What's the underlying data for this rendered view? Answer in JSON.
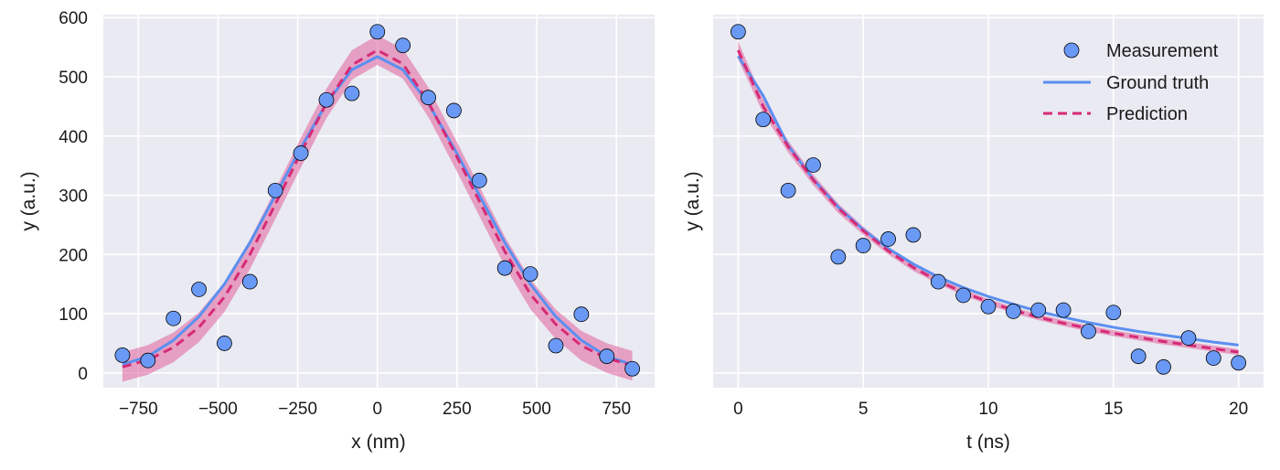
{
  "colors": {
    "background": "#eaeaf2",
    "grid": "#ffffff",
    "measurement": "#6a99f5",
    "ground_truth": "#5b8ff0",
    "prediction": "#d62a76",
    "band": "#e0609c"
  },
  "legend": {
    "measurement": "Measurement",
    "ground_truth": "Ground truth",
    "prediction": "Prediction"
  },
  "chart_data": [
    {
      "type": "scatter",
      "xlabel": "x (nm)",
      "ylabel": "y (a.u.)",
      "xlim": [
        -860,
        870
      ],
      "ylim": [
        -25,
        605
      ],
      "xticks": [
        -750,
        -500,
        -250,
        0,
        250,
        500,
        750
      ],
      "xtick_labels": [
        "−750",
        "−500",
        "−250",
        "0",
        "250",
        "500",
        "750"
      ],
      "yticks": [
        0,
        100,
        200,
        300,
        400,
        500,
        600
      ],
      "ytick_labels": [
        "0",
        "100",
        "200",
        "300",
        "400",
        "500",
        "600"
      ],
      "grid": true,
      "series": [
        {
          "name": "Measurement",
          "kind": "points",
          "x": [
            -800,
            -720,
            -640,
            -560,
            -480,
            -400,
            -320,
            -240,
            -160,
            -80,
            0,
            80,
            160,
            240,
            320,
            400,
            480,
            560,
            640,
            720,
            800
          ],
          "y": [
            30,
            21,
            92,
            141,
            50,
            154,
            308,
            371,
            461,
            472,
            576,
            553,
            465,
            443,
            325,
            177,
            167,
            46,
            99,
            28,
            7
          ]
        },
        {
          "name": "Ground truth",
          "kind": "line",
          "x": [
            -800,
            -720,
            -640,
            -560,
            -480,
            -400,
            -320,
            -240,
            -160,
            -80,
            0,
            80,
            160,
            240,
            320,
            400,
            480,
            560,
            640,
            720,
            800
          ],
          "y": [
            14,
            28,
            55,
            95,
            150,
            220,
            300,
            380,
            455,
            512,
            534,
            512,
            455,
            380,
            300,
            220,
            150,
            95,
            55,
            28,
            14
          ]
        },
        {
          "name": "Prediction",
          "kind": "dashed-line",
          "x": [
            -800,
            -720,
            -640,
            -560,
            -480,
            -400,
            -320,
            -240,
            -160,
            -80,
            0,
            80,
            160,
            240,
            320,
            400,
            480,
            560,
            640,
            720,
            800
          ],
          "y": [
            10,
            22,
            43,
            77,
            128,
            200,
            285,
            372,
            455,
            520,
            545,
            522,
            457,
            375,
            290,
            205,
            133,
            82,
            46,
            25,
            12
          ],
          "band": [
            25,
            25,
            25,
            25,
            25,
            25,
            25,
            25,
            25,
            25,
            25,
            25,
            25,
            25,
            25,
            25,
            25,
            25,
            25,
            25,
            25
          ]
        }
      ]
    },
    {
      "type": "scatter",
      "xlabel": "t (ns)",
      "ylabel": "y (a.u.)",
      "xlim": [
        -1,
        21
      ],
      "ylim": [
        -25,
        605
      ],
      "xticks": [
        0,
        5,
        10,
        15,
        20
      ],
      "xtick_labels": [
        "0",
        "5",
        "10",
        "15",
        "20"
      ],
      "yticks": [
        0,
        100,
        200,
        300,
        400,
        500,
        600
      ],
      "ytick_labels": [],
      "grid": true,
      "legend_position": "top-right",
      "series": [
        {
          "name": "Measurement",
          "kind": "points",
          "x": [
            0,
            1,
            2,
            3,
            4,
            5,
            6,
            7,
            8,
            9,
            10,
            11,
            12,
            13,
            14,
            15,
            16,
            17,
            18,
            19,
            20
          ],
          "y": [
            576,
            428,
            308,
            351,
            196,
            215,
            226,
            233,
            154,
            131,
            112,
            104,
            106,
            106,
            70,
            102,
            28,
            10,
            59,
            25,
            17
          ]
        },
        {
          "name": "Ground truth",
          "kind": "line",
          "x": [
            0,
            1,
            2,
            3,
            4,
            5,
            6,
            7,
            8,
            9,
            10,
            11,
            12,
            13,
            14,
            15,
            16,
            17,
            18,
            19,
            20
          ],
          "y": [
            535,
            468,
            384,
            327,
            280,
            242,
            210,
            184,
            162,
            144,
            129,
            116,
            104,
            94,
            85,
            77,
            70,
            64,
            58,
            52,
            47
          ]
        },
        {
          "name": "Prediction",
          "kind": "dashed-line",
          "x": [
            0,
            1,
            2,
            3,
            4,
            5,
            6,
            7,
            8,
            9,
            10,
            11,
            12,
            13,
            14,
            15,
            16,
            17,
            18,
            19,
            20
          ],
          "y": [
            545,
            450,
            382,
            326,
            278,
            240,
            206,
            178,
            155,
            136,
            120,
            106,
            94,
            84,
            75,
            67,
            60,
            53,
            47,
            41,
            35
          ],
          "band": [
            15,
            12,
            10,
            9,
            8,
            7,
            6,
            6,
            5,
            5,
            5,
            5,
            5,
            5,
            5,
            5,
            5,
            5,
            5,
            5,
            5
          ]
        }
      ]
    }
  ]
}
